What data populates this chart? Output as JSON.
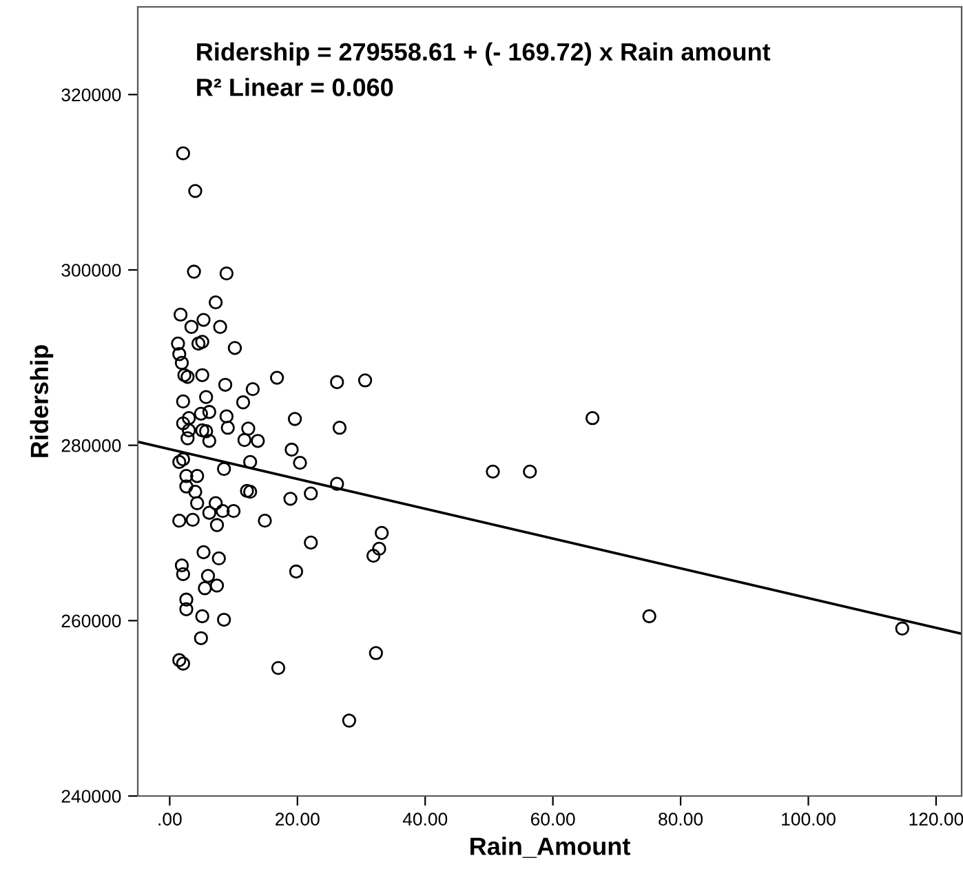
{
  "chart_data": {
    "type": "scatter",
    "xlabel": "Rain_Amount",
    "ylabel": "Ridership",
    "annotations": [
      "Ridership = 279558.61 + (- 169.72) x Rain amount",
      "R² Linear = 0.060"
    ],
    "xlim": [
      -5,
      124
    ],
    "ylim": [
      240000,
      330000
    ],
    "xticks": [
      {
        "value": 0,
        "label": ".00"
      },
      {
        "value": 20,
        "label": "20.00"
      },
      {
        "value": 40,
        "label": "40.00"
      },
      {
        "value": 60,
        "label": "60.00"
      },
      {
        "value": 80,
        "label": "80.00"
      },
      {
        "value": 100,
        "label": "100.00"
      },
      {
        "value": 120,
        "label": "120.00"
      }
    ],
    "yticks": [
      240000,
      260000,
      280000,
      300000,
      320000
    ],
    "grid": false,
    "legend": false,
    "marker": "circle",
    "series": [
      {
        "color": "#000000",
        "x": [
          2.1,
          4.0,
          3.8,
          8.9,
          7.2,
          1.7,
          3.4,
          5.3,
          7.9,
          10.2,
          1.3,
          4.5,
          5.1,
          1.5,
          1.9,
          2.3,
          2.8,
          5.1,
          8.7,
          16.8,
          13.0,
          2.1,
          5.7,
          11.5,
          8.9,
          3.0,
          4.9,
          6.2,
          2.1,
          3.0,
          5.1,
          5.7,
          9.1,
          12.3,
          19.6,
          2.8,
          6.2,
          11.7,
          13.8,
          19.1,
          2.1,
          12.6,
          26.2,
          30.6,
          26.6,
          20.4,
          26.2,
          1.5,
          2.6,
          8.5,
          4.3,
          2.6,
          4.0,
          12.6,
          12.1,
          18.9,
          4.3,
          7.2,
          6.2,
          8.3,
          10.0,
          1.5,
          3.6,
          7.4,
          14.9,
          22.1,
          5.3,
          7.7,
          1.9,
          2.1,
          6.0,
          7.4,
          5.5,
          2.6,
          2.6,
          5.1,
          8.5,
          4.9,
          1.5,
          2.1,
          17.0,
          19.8,
          22.1,
          33.2,
          32.8,
          31.9,
          50.6,
          56.4,
          66.2,
          75.1,
          114.7,
          32.3,
          28.1
        ],
        "values": [
          313300,
          309000,
          299800,
          299600,
          296300,
          294900,
          293500,
          294300,
          293500,
          291100,
          291600,
          291600,
          291800,
          290400,
          289400,
          288000,
          287800,
          288000,
          286900,
          287700,
          286400,
          285000,
          285500,
          284900,
          283300,
          283100,
          283600,
          283800,
          282500,
          281700,
          281700,
          281600,
          282000,
          281900,
          283000,
          280800,
          280500,
          280600,
          280500,
          279500,
          278400,
          278100,
          287200,
          287400,
          282000,
          278000,
          275600,
          278100,
          276500,
          277300,
          276500,
          275300,
          274700,
          274700,
          274800,
          273900,
          273400,
          273400,
          272300,
          272500,
          272500,
          271400,
          271500,
          270900,
          271400,
          274500,
          267800,
          267100,
          266300,
          265300,
          265100,
          264000,
          263700,
          262400,
          261300,
          260500,
          260100,
          258000,
          255500,
          255100,
          254600,
          265600,
          268900,
          270000,
          268200,
          267400,
          277000,
          277000,
          283100,
          260500,
          259100,
          256300,
          248600
        ]
      },
      {
        "type": "line",
        "color": "#000000",
        "marker": "none",
        "line_style": "solid",
        "x": [
          -5,
          124
        ],
        "values": [
          280400,
          258500
        ]
      }
    ]
  }
}
